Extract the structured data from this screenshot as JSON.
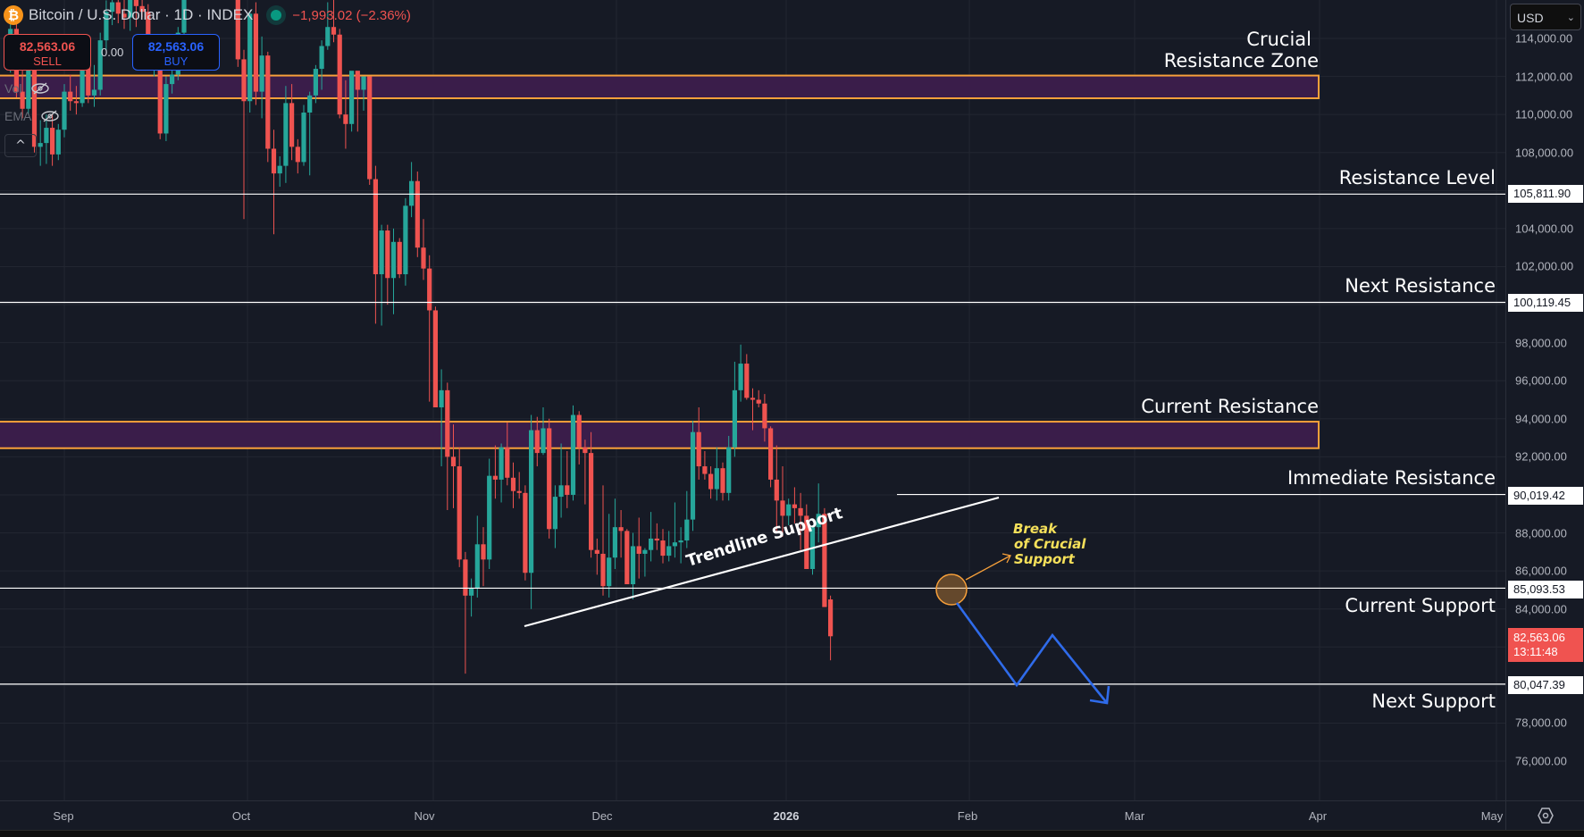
{
  "header": {
    "symbol_icon": "bitcoin-logo",
    "symbol_glyph": "₿",
    "title": "Bitcoin / U.S. Dollar · 1D · INDEX",
    "change": "−1,993.02 (−2.36%)",
    "market_status": "open"
  },
  "trade": {
    "sell_price": "82,563.06",
    "sell_label": "SELL",
    "spread": "0.00",
    "buy_price": "82,563.06",
    "buy_label": "BUY"
  },
  "indicators": [
    {
      "label": "Vol",
      "visibility": "hidden"
    },
    {
      "label": "EMA",
      "visibility": "hidden"
    }
  ],
  "collapse_icon": "^",
  "currency": {
    "selected": "USD",
    "chevron": "⌄"
  },
  "price_axis": {
    "ticks": [
      "114,000.00",
      "112,000.00",
      "110,000.00",
      "108,000.00",
      "104,000.00",
      "102,000.00",
      "98,000.00",
      "96,000.00",
      "94,000.00",
      "92,000.00",
      "88,000.00",
      "86,000.00",
      "84,000.00",
      "78,000.00",
      "76,000.00"
    ],
    "flags": [
      {
        "label": "105,811.90"
      },
      {
        "label": "100,119.45"
      },
      {
        "label": "90,019.42"
      },
      {
        "label": "85,093.53"
      },
      {
        "label": "80,047.39"
      }
    ],
    "last_price": "82,563.06",
    "countdown": "13:11:48"
  },
  "time_axis": {
    "labels": [
      "Sep",
      "Oct",
      "Nov",
      "Dec",
      "2026",
      "Feb",
      "Mar",
      "Apr",
      "May"
    ]
  },
  "annotations": {
    "crucial_zone_line1": "Crucial",
    "crucial_zone_line2": "Resistance Zone",
    "resistance_level": "Resistance Level",
    "next_resistance": "Next Resistance",
    "current_resistance": "Current Resistance",
    "immediate_resistance": "Immediate Resistance",
    "current_support": "Current Support",
    "next_support": "Next Support",
    "trendline": "Trendline Support",
    "break_line1": "Break",
    "break_line2": "of Crucial",
    "break_line3": "Support"
  },
  "colors": {
    "background": "#161a25",
    "up": "#26a69a",
    "down": "#ef5350",
    "zone_fill": "#3a1d4a",
    "zone_border": "#f7a03a",
    "level_line": "#ffffff",
    "projection": "#2f6bea",
    "break_text": "#f5e05a"
  },
  "chart_data": {
    "type": "candlestick",
    "title": "Bitcoin / U.S. Dollar · 1D · INDEX",
    "xlabel": "",
    "ylabel": "USD",
    "ylim": [
      74500,
      115000
    ],
    "x_ticks": [
      "Sep",
      "Oct",
      "Nov",
      "Dec",
      "2026",
      "Feb",
      "Mar",
      "Apr",
      "May"
    ],
    "levels": [
      {
        "name": "Resistance Level",
        "price": 105811.9
      },
      {
        "name": "Next Resistance",
        "price": 100119.45
      },
      {
        "name": "Immediate Resistance",
        "price": 90019.42
      },
      {
        "name": "Current Support",
        "price": 85093.53
      },
      {
        "name": "Next Support",
        "price": 80047.39
      }
    ],
    "zones": [
      {
        "name": "Crucial Resistance Zone",
        "low": 110900,
        "high": 112000
      },
      {
        "name": "Current Resistance",
        "low": 92500,
        "high": 93800
      }
    ],
    "trendline": {
      "name": "Trendline Support",
      "from": {
        "date": "2025-11-22",
        "price": 83300
      },
      "to": {
        "date": "2026-02-05",
        "price": 89800
      }
    },
    "projection": [
      {
        "date": "2026-01-31",
        "price": 84500
      },
      {
        "date": "2026-02-10",
        "price": 80047
      },
      {
        "date": "2026-02-16",
        "price": 82700
      },
      {
        "date": "2026-02-25",
        "price": 79100
      }
    ],
    "last_price": 82563.06,
    "change": -1993.02,
    "change_pct": -2.36,
    "ohlc_start_date": "2025-08-23",
    "ohlc": [
      [
        113500,
        115600,
        112200,
        114500
      ],
      [
        114500,
        115200,
        110900,
        111200
      ],
      [
        111200,
        112800,
        109800,
        110300
      ],
      [
        110300,
        113000,
        110000,
        112500
      ],
      [
        112500,
        113300,
        108000,
        108300
      ],
      [
        108300,
        109700,
        107300,
        108500
      ],
      [
        108500,
        110000,
        107400,
        109300
      ],
      [
        109300,
        110000,
        107300,
        107900
      ],
      [
        107900,
        109500,
        107600,
        109200
      ],
      [
        109200,
        111600,
        108800,
        111200
      ],
      [
        111200,
        112100,
        110200,
        110700
      ],
      [
        110700,
        111500,
        110000,
        110600
      ],
      [
        110600,
        113300,
        110400,
        112900
      ],
      [
        112900,
        113500,
        110600,
        111000
      ],
      [
        111000,
        112600,
        110400,
        111300
      ],
      [
        111300,
        114300,
        111000,
        113900
      ],
      [
        113900,
        116000,
        113400,
        115400
      ],
      [
        115400,
        116500,
        114700,
        115900
      ],
      [
        115900,
        116700,
        114800,
        115300
      ],
      [
        115300,
        116200,
        114500,
        115100
      ],
      [
        115100,
        117800,
        114400,
        116800
      ],
      [
        116800,
        117200,
        114600,
        115700
      ],
      [
        115700,
        116600,
        115100,
        115400
      ],
      [
        115400,
        115800,
        112700,
        112800
      ],
      [
        112800,
        113500,
        112000,
        113200
      ],
      [
        113200,
        113300,
        108700,
        109000
      ],
      [
        109000,
        112000,
        108600,
        111600
      ],
      [
        111600,
        113100,
        111100,
        112100
      ],
      [
        112100,
        114600,
        111800,
        114300
      ],
      [
        114300,
        118600,
        114100,
        118500
      ],
      [
        118500,
        121000,
        118300,
        120000
      ],
      [
        120000,
        121800,
        119300,
        121500
      ],
      [
        121500,
        125200,
        120500,
        123600
      ],
      [
        123600,
        125100,
        122500,
        124700
      ],
      [
        124700,
        126000,
        123200,
        124000
      ],
      [
        124000,
        124700,
        120700,
        121500
      ],
      [
        121500,
        123600,
        121000,
        123300
      ],
      [
        123300,
        123500,
        120300,
        120900
      ],
      [
        120900,
        121700,
        112500,
        112900
      ],
      [
        112900,
        113400,
        104500,
        110700
      ],
      [
        110700,
        115400,
        110100,
        115300
      ],
      [
        115300,
        115900,
        110500,
        111200
      ],
      [
        111200,
        114100,
        109800,
        113100
      ],
      [
        113100,
        113300,
        107500,
        108200
      ],
      [
        108200,
        109200,
        103700,
        106900
      ],
      [
        106900,
        107800,
        106200,
        107300
      ],
      [
        107300,
        111500,
        106400,
        110600
      ],
      [
        110600,
        111600,
        107600,
        108300
      ],
      [
        108300,
        108700,
        106900,
        107500
      ],
      [
        107500,
        110500,
        107300,
        110100
      ],
      [
        110100,
        111200,
        106800,
        111000
      ],
      [
        111000,
        112600,
        110600,
        112400
      ],
      [
        112400,
        113900,
        111300,
        113600
      ],
      [
        113600,
        115900,
        113400,
        114600
      ],
      [
        114600,
        116200,
        113800,
        114200
      ],
      [
        114200,
        114500,
        109800,
        110000
      ],
      [
        110000,
        111800,
        108200,
        109500
      ],
      [
        109500,
        112200,
        109100,
        112300
      ],
      [
        112300,
        112100,
        109100,
        111300
      ],
      [
        111300,
        112000,
        110200,
        112000
      ],
      [
        112000,
        112000,
        106300,
        106600
      ],
      [
        106600,
        107300,
        99000,
        101600
      ],
      [
        101600,
        104200,
        98900,
        103900
      ],
      [
        103900,
        104200,
        100000,
        101400
      ],
      [
        101400,
        104000,
        99500,
        103300
      ],
      [
        103300,
        103500,
        101400,
        101600
      ],
      [
        101600,
        105600,
        101000,
        105200
      ],
      [
        105200,
        107500,
        104600,
        106500
      ],
      [
        106500,
        107000,
        102500,
        103000
      ],
      [
        103000,
        104500,
        101300,
        101900
      ],
      [
        101900,
        102600,
        94900,
        99700
      ],
      [
        99700,
        99900,
        94800,
        94600
      ],
      [
        94600,
        96600,
        91500,
        95500
      ],
      [
        95500,
        95900,
        89200,
        92000
      ],
      [
        92000,
        93700,
        89300,
        91500
      ],
      [
        91500,
        92500,
        86200,
        86600
      ],
      [
        86600,
        87000,
        80600,
        84700
      ],
      [
        84700,
        85600,
        83600,
        85100
      ],
      [
        85100,
        88900,
        84600,
        87400
      ],
      [
        87400,
        88300,
        85200,
        86600
      ],
      [
        86600,
        91900,
        86100,
        91000
      ],
      [
        91000,
        92600,
        89800,
        90800
      ],
      [
        90800,
        92700,
        89600,
        92500
      ],
      [
        92500,
        93800,
        90500,
        90900
      ],
      [
        90900,
        91700,
        89300,
        90200
      ],
      [
        90200,
        91200,
        89800,
        90100
      ],
      [
        90100,
        90500,
        85500,
        85900
      ],
      [
        85900,
        94200,
        84000,
        93400
      ],
      [
        93400,
        94100,
        91500,
        92200
      ],
      [
        92200,
        94600,
        92100,
        93500
      ],
      [
        93500,
        94000,
        87700,
        88200
      ],
      [
        88200,
        90500,
        87200,
        89900
      ],
      [
        89900,
        92700,
        88800,
        90500
      ],
      [
        90500,
        92300,
        89300,
        90000
      ],
      [
        90000,
        94700,
        89700,
        94200
      ],
      [
        94200,
        94400,
        91600,
        92500
      ],
      [
        92500,
        92900,
        89500,
        92200
      ],
      [
        92200,
        93300,
        86700,
        87100
      ],
      [
        87100,
        87700,
        85800,
        86900
      ],
      [
        86900,
        90500,
        84700,
        85200
      ],
      [
        85200,
        89000,
        84600,
        86700
      ],
      [
        86700,
        89800,
        86100,
        88300
      ],
      [
        88300,
        89200,
        86700,
        88100
      ],
      [
        88100,
        88200,
        85400,
        85300
      ],
      [
        85300,
        88000,
        84500,
        87300
      ],
      [
        87300,
        88800,
        85600,
        86900
      ],
      [
        86900,
        87200,
        85700,
        87100
      ],
      [
        87100,
        89100,
        86500,
        87700
      ],
      [
        87700,
        88500,
        87100,
        87600
      ],
      [
        87600,
        88200,
        86400,
        86800
      ],
      [
        86800,
        88100,
        86500,
        87300
      ],
      [
        87300,
        89600,
        86700,
        87500
      ],
      [
        87500,
        88300,
        86400,
        87600
      ],
      [
        87600,
        90200,
        87200,
        88700
      ],
      [
        88700,
        93900,
        88100,
        93300
      ],
      [
        93300,
        94600,
        90800,
        91500
      ],
      [
        91500,
        92300,
        90800,
        91100
      ],
      [
        91100,
        91500,
        89800,
        90300
      ],
      [
        90300,
        92500,
        89700,
        91400
      ],
      [
        91400,
        91700,
        89700,
        90100
      ],
      [
        90100,
        93100,
        89700,
        92500
      ],
      [
        92500,
        97000,
        92000,
        95500
      ],
      [
        95500,
        97900,
        94900,
        96900
      ],
      [
        96900,
        97400,
        95000,
        95100
      ],
      [
        95100,
        95600,
        93400,
        95000
      ],
      [
        95000,
        95500,
        94600,
        94800
      ],
      [
        94800,
        95300,
        92800,
        93500
      ],
      [
        93500,
        93600,
        90400,
        90800
      ],
      [
        90800,
        92600,
        88000,
        89700
      ],
      [
        89700,
        91500,
        87800,
        88900
      ],
      [
        88900,
        89800,
        88400,
        89500
      ],
      [
        89500,
        90400,
        88500,
        89300
      ],
      [
        89300,
        90100,
        87100,
        88900
      ],
      [
        88900,
        89500,
        86200,
        86100
      ],
      [
        86100,
        88400,
        85800,
        88300
      ],
      [
        88300,
        90600,
        87500,
        89000
      ],
      [
        89000,
        89300,
        84600,
        84100
      ],
      [
        84500,
        84700,
        81300,
        82563
      ]
    ]
  }
}
